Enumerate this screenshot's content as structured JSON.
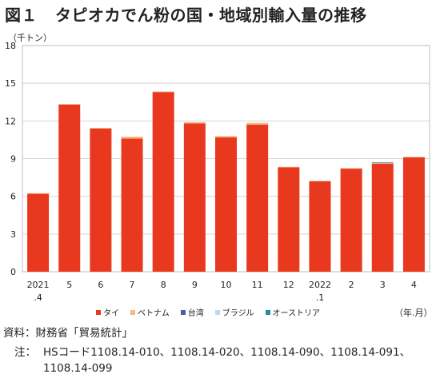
{
  "title_number": "図１",
  "title_text": "タピオカでん粉の国・地域別輸入量の推移",
  "unit_label": "（千トン）",
  "x_unit_label": "（年.月）",
  "source": "資料：財務省「貿易統計」",
  "note_label": "注：",
  "note_text": "HSコード1108.14-010、1108.14-020、1108.14-090、1108.14-091、1108.14-099",
  "chart_data": {
    "type": "bar",
    "stacked": true,
    "categories": [
      {
        "line1": "2021",
        "line2": ".4"
      },
      {
        "line1": "5",
        "line2": ""
      },
      {
        "line1": "6",
        "line2": ""
      },
      {
        "line1": "7",
        "line2": ""
      },
      {
        "line1": "8",
        "line2": ""
      },
      {
        "line1": "9",
        "line2": ""
      },
      {
        "line1": "10",
        "line2": ""
      },
      {
        "line1": "11",
        "line2": ""
      },
      {
        "line1": "12",
        "line2": ""
      },
      {
        "line1": "2022",
        "line2": ".1"
      },
      {
        "line1": "2",
        "line2": ""
      },
      {
        "line1": "3",
        "line2": ""
      },
      {
        "line1": "4",
        "line2": ""
      }
    ],
    "series": [
      {
        "name": "タイ",
        "color": "#e8391f",
        "values": [
          6.2,
          13.3,
          11.4,
          10.6,
          14.3,
          11.8,
          10.7,
          11.7,
          8.3,
          7.2,
          8.2,
          8.6,
          9.1
        ]
      },
      {
        "name": "ベトナム",
        "color": "#f5b982",
        "values": [
          0.05,
          0.05,
          0.05,
          0.15,
          0.05,
          0.1,
          0.1,
          0.15,
          0.05,
          0.05,
          0.05,
          0.05,
          0.05
        ]
      },
      {
        "name": "台湾",
        "color": "#4a5fa8",
        "values": [
          0,
          0,
          0,
          0,
          0,
          0,
          0,
          0,
          0,
          0,
          0,
          0,
          0
        ]
      },
      {
        "name": "ブラジル",
        "color": "#b7dde8",
        "values": [
          0,
          0,
          0,
          0,
          0,
          0,
          0,
          0,
          0,
          0,
          0,
          0,
          0
        ]
      },
      {
        "name": "オーストリア",
        "color": "#1f8ea3",
        "values": [
          0,
          0,
          0,
          0,
          0,
          0,
          0,
          0,
          0,
          0,
          0,
          0.05,
          0
        ]
      }
    ],
    "ylim": [
      0,
      18
    ],
    "yticks": [
      0,
      3,
      6,
      9,
      12,
      15,
      18
    ],
    "grid": true,
    "legend_position": "bottom"
  }
}
